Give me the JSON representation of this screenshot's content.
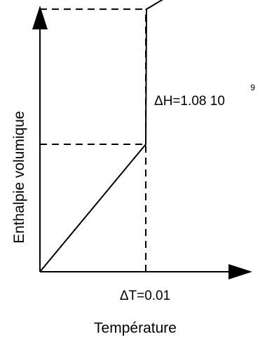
{
  "chart_data": {
    "type": "line",
    "xlabel": "Température",
    "ylabel": "Enthalpie volumique",
    "annotations": {
      "delta_h": "ΔH=1.08 10",
      "delta_h_exponent": "9",
      "delta_t": "ΔT=0.01"
    },
    "grid": false,
    "series": [
      {
        "points": [
          {
            "x": 0,
            "y": 0
          },
          {
            "x": 1,
            "y": 1
          },
          {
            "x": 1.0,
            "y": 2.06
          },
          {
            "x": 2.0,
            "y": 2.55
          }
        ]
      }
    ],
    "reference_lines": [
      {
        "from": [
          0,
          1
        ],
        "to": [
          1,
          1
        ]
      },
      {
        "from": [
          0,
          2.06
        ],
        "to": [
          1,
          2.06
        ]
      },
      {
        "from": [
          1,
          0
        ],
        "to": [
          1,
          2.06
        ]
      }
    ]
  },
  "colors": {
    "stroke": "#000000",
    "background": "#ffffff"
  }
}
